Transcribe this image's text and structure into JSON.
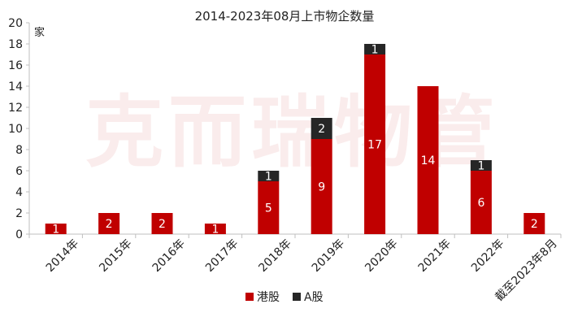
{
  "watermark": "克而瑞物管",
  "chart_data": {
    "type": "bar",
    "stacked": true,
    "title": "2014-2023年08月上市物企数量",
    "ylabel": "家",
    "ylim": [
      0,
      20
    ],
    "yticks": [
      0,
      2,
      4,
      6,
      8,
      10,
      12,
      14,
      16,
      18,
      20
    ],
    "grid": false,
    "legend_position": "bottom",
    "categories": [
      "2014年",
      "2015年",
      "2016年",
      "2017年",
      "2018年",
      "2019年",
      "2020年",
      "2021年",
      "2022年",
      "截至2023年8月"
    ],
    "series": [
      {
        "name": "港股",
        "color": "#c00000",
        "values": [
          1,
          2,
          2,
          1,
          5,
          9,
          17,
          14,
          6,
          2
        ]
      },
      {
        "name": "A股",
        "color": "#262626",
        "values": [
          0,
          0,
          0,
          0,
          1,
          2,
          1,
          0,
          1,
          0
        ]
      }
    ]
  }
}
